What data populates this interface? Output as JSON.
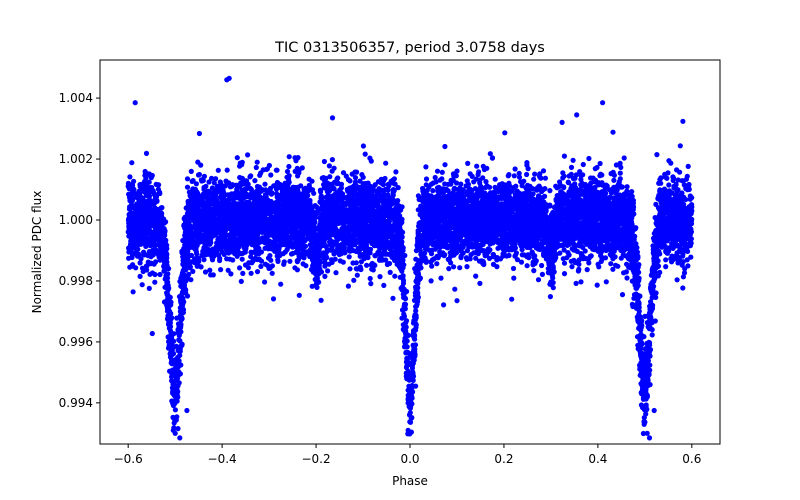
{
  "chart_data": {
    "type": "scatter",
    "title": "TIC 0313506357, period 3.0758 days",
    "xlabel": "Phase",
    "ylabel": "Normalized PDC flux",
    "xlim": [
      -0.66,
      0.66
    ],
    "ylim": [
      0.99265,
      1.00525
    ],
    "xticks": [
      -0.6,
      -0.4,
      -0.2,
      0.0,
      0.2,
      0.4,
      0.6
    ],
    "xtick_labels": [
      "−0.6",
      "−0.4",
      "−0.2",
      "0.0",
      "0.2",
      "0.4",
      "0.6"
    ],
    "yticks": [
      0.994,
      0.996,
      0.998,
      1.0,
      1.002,
      1.004
    ],
    "ytick_labels": [
      "0.994",
      "0.996",
      "0.998",
      "1.000",
      "1.002",
      "1.004"
    ],
    "grid": false,
    "marker_color": "#0000ff",
    "series": [
      {
        "name": "PDC flux",
        "x_range": [
          -0.6,
          0.6
        ],
        "baseline": 1.0,
        "scatter_sigma": 0.0009,
        "num_points": 9000,
        "dips": [
          {
            "phase": -0.5,
            "depth": 0.0055,
            "width": 0.012
          },
          {
            "phase": 0.0,
            "depth": 0.0058,
            "width": 0.01
          },
          {
            "phase": 0.5,
            "depth": 0.0055,
            "width": 0.012
          }
        ],
        "secondary_dips": [
          {
            "phase": -0.2,
            "depth": 0.0012,
            "width": 0.006
          },
          {
            "phase": 0.3,
            "depth": 0.0012,
            "width": 0.006
          }
        ],
        "notable_points": [
          {
            "x": -0.385,
            "y": 1.00465
          },
          {
            "x": -0.39,
            "y": 1.0046
          },
          {
            "x": -0.585,
            "y": 1.00385
          },
          {
            "x": 0.41,
            "y": 1.00385
          },
          {
            "x": -0.165,
            "y": 1.00335
          },
          {
            "x": 0.355,
            "y": 1.00345
          },
          {
            "x": -0.49,
            "y": 0.99285
          },
          {
            "x": 0.51,
            "y": 0.99285
          },
          {
            "x": -0.5,
            "y": 0.993
          },
          {
            "x": 0.505,
            "y": 0.993
          },
          {
            "x": -0.475,
            "y": 0.99375
          },
          {
            "x": 0.52,
            "y": 0.99375
          },
          {
            "x": 0.0,
            "y": 0.99435
          },
          {
            "x": 0.012,
            "y": 0.99455
          }
        ]
      }
    ]
  }
}
